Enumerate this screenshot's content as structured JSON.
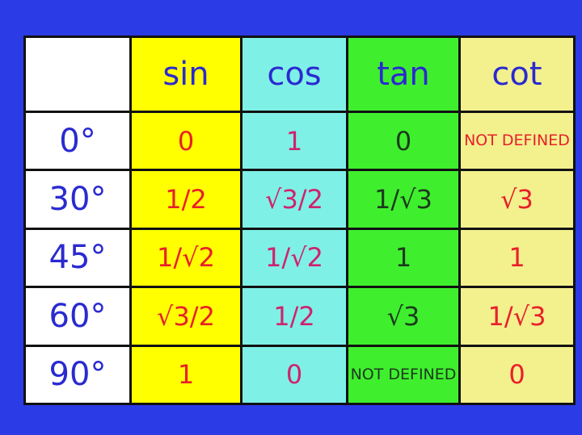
{
  "header": {
    "columns": [
      "sin",
      "cos",
      "tan",
      "cot"
    ]
  },
  "rows": [
    {
      "angle": "0°",
      "values": [
        "0",
        "1",
        "0",
        "NOT DEFINED"
      ]
    },
    {
      "angle": "30°",
      "values": [
        "1/2",
        "√3/2",
        "1/√3",
        "√3"
      ]
    },
    {
      "angle": "45°",
      "values": [
        "1/√2",
        "1/√2",
        "1",
        "1"
      ]
    },
    {
      "angle": "60°",
      "values": [
        "√3/2",
        "1/2",
        "√3",
        "1/√3"
      ]
    },
    {
      "angle": "90°",
      "values": [
        "1",
        "0",
        "NOT DEFINED",
        "0"
      ]
    }
  ]
}
